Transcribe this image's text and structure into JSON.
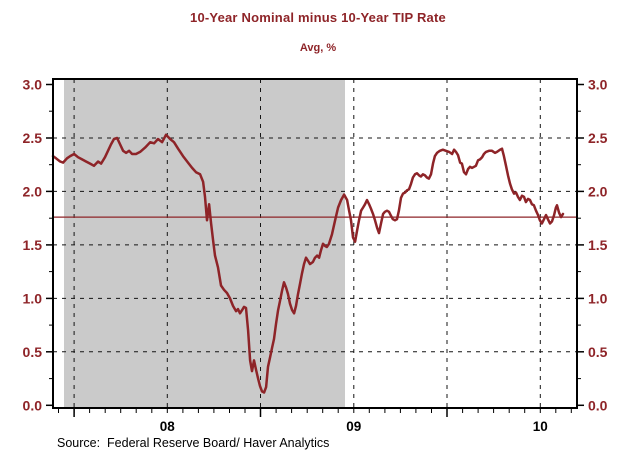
{
  "title": "10-Year Nominal minus 10-Year TIP Rate",
  "subtitle": "Avg, %",
  "source": "Source:  Federal Reserve Board/ Haver Analytics",
  "colors": {
    "accent_red": "#8e2428",
    "band_gray": "#cacaca",
    "grid_black": "#151515",
    "frame_black": "#000000",
    "text_black": "#000000",
    "background": "#ffffff"
  },
  "chart_data": {
    "type": "line",
    "title": "10-Year Nominal minus 10-Year TIP Rate",
    "subtitle": "Avg, %",
    "xlabel": "",
    "ylabel": "Avg, %",
    "grid": "dashed-both-axes",
    "legend_position": "none",
    "x_axis": {
      "unit": "decimal-year",
      "range": [
        2007.887,
        2010.697
      ],
      "labels": [
        {
          "text": "08",
          "year": 2008.5
        },
        {
          "text": "09",
          "year": 2009.5
        },
        {
          "text": "10",
          "year": 2010.5
        }
      ],
      "gridlines": [
        2008.0,
        2008.5,
        2009.0,
        2009.5,
        2010.0,
        2010.5
      ],
      "minor_tick_interval_years": 0.08333,
      "minor_tick_start": 2007.9167,
      "minor_tick_end": 2010.6667,
      "year_start_ticks": [
        2008.0,
        2009.0,
        2010.0
      ]
    },
    "y_axis": {
      "range": [
        0.0,
        3.0
      ],
      "major_ticks": [
        0.0,
        0.5,
        1.0,
        1.5,
        2.0,
        2.5,
        3.0
      ],
      "major_tick_labels": [
        "0.0",
        "0.5",
        "1.0",
        "1.5",
        "2.0",
        "2.5",
        "3.0"
      ],
      "minor_ticks": [
        0.25,
        0.75,
        1.25,
        1.75,
        2.25,
        2.75
      ],
      "gridlines": [
        0.5,
        1.0,
        1.5,
        2.0,
        2.5
      ],
      "labels_on_both_sides": true
    },
    "reference_line_value": 1.76,
    "recession_band": {
      "start": 2007.946,
      "end": 2009.453
    },
    "series": [
      {
        "name": "10-Year Nominal minus 10-Year TIP Rate",
        "points": [
          [
            2007.887,
            2.33
          ],
          [
            2007.903,
            2.31
          ],
          [
            2007.925,
            2.28
          ],
          [
            2007.941,
            2.27
          ],
          [
            2007.962,
            2.31
          ],
          [
            2007.979,
            2.33
          ],
          [
            2008.0,
            2.35
          ],
          [
            2008.021,
            2.32
          ],
          [
            2008.043,
            2.3
          ],
          [
            2008.064,
            2.28
          ],
          [
            2008.086,
            2.26
          ],
          [
            2008.107,
            2.24
          ],
          [
            2008.129,
            2.28
          ],
          [
            2008.145,
            2.26
          ],
          [
            2008.166,
            2.32
          ],
          [
            2008.182,
            2.38
          ],
          [
            2008.198,
            2.44
          ],
          [
            2008.214,
            2.49
          ],
          [
            2008.231,
            2.5
          ],
          [
            2008.247,
            2.44
          ],
          [
            2008.263,
            2.38
          ],
          [
            2008.279,
            2.36
          ],
          [
            2008.295,
            2.38
          ],
          [
            2008.311,
            2.35
          ],
          [
            2008.332,
            2.35
          ],
          [
            2008.354,
            2.37
          ],
          [
            2008.381,
            2.41
          ],
          [
            2008.408,
            2.46
          ],
          [
            2008.429,
            2.45
          ],
          [
            2008.45,
            2.49
          ],
          [
            2008.472,
            2.46
          ],
          [
            2008.493,
            2.53
          ],
          [
            2008.515,
            2.49
          ],
          [
            2008.536,
            2.46
          ],
          [
            2008.558,
            2.4
          ],
          [
            2008.584,
            2.33
          ],
          [
            2008.611,
            2.27
          ],
          [
            2008.633,
            2.22
          ],
          [
            2008.654,
            2.18
          ],
          [
            2008.676,
            2.16
          ],
          [
            2008.692,
            2.09
          ],
          [
            2008.702,
            1.95
          ],
          [
            2008.713,
            1.73
          ],
          [
            2008.724,
            1.88
          ],
          [
            2008.735,
            1.7
          ],
          [
            2008.745,
            1.55
          ],
          [
            2008.756,
            1.4
          ],
          [
            2008.772,
            1.29
          ],
          [
            2008.788,
            1.12
          ],
          [
            2008.804,
            1.08
          ],
          [
            2008.82,
            1.05
          ],
          [
            2008.836,
            1.0
          ],
          [
            2008.852,
            0.93
          ],
          [
            2008.869,
            0.88
          ],
          [
            2008.879,
            0.9
          ],
          [
            2008.89,
            0.86
          ],
          [
            2008.901,
            0.89
          ],
          [
            2008.911,
            0.92
          ],
          [
            2008.922,
            0.91
          ],
          [
            2008.933,
            0.7
          ],
          [
            2008.944,
            0.42
          ],
          [
            2008.954,
            0.32
          ],
          [
            2008.965,
            0.42
          ],
          [
            2008.976,
            0.33
          ],
          [
            2008.987,
            0.25
          ],
          [
            2008.997,
            0.18
          ],
          [
            2009.008,
            0.13
          ],
          [
            2009.019,
            0.12
          ],
          [
            2009.03,
            0.17
          ],
          [
            2009.04,
            0.36
          ],
          [
            2009.051,
            0.45
          ],
          [
            2009.062,
            0.54
          ],
          [
            2009.072,
            0.62
          ],
          [
            2009.083,
            0.76
          ],
          [
            2009.094,
            0.89
          ],
          [
            2009.105,
            0.98
          ],
          [
            2009.115,
            1.07
          ],
          [
            2009.126,
            1.15
          ],
          [
            2009.137,
            1.1
          ],
          [
            2009.147,
            1.04
          ],
          [
            2009.158,
            0.95
          ],
          [
            2009.169,
            0.89
          ],
          [
            2009.18,
            0.86
          ],
          [
            2009.19,
            0.93
          ],
          [
            2009.201,
            1.04
          ],
          [
            2009.212,
            1.14
          ],
          [
            2009.222,
            1.23
          ],
          [
            2009.233,
            1.32
          ],
          [
            2009.244,
            1.38
          ],
          [
            2009.255,
            1.35
          ],
          [
            2009.265,
            1.32
          ],
          [
            2009.281,
            1.34
          ],
          [
            2009.292,
            1.38
          ],
          [
            2009.303,
            1.4
          ],
          [
            2009.314,
            1.38
          ],
          [
            2009.324,
            1.45
          ],
          [
            2009.335,
            1.51
          ],
          [
            2009.346,
            1.49
          ],
          [
            2009.356,
            1.48
          ],
          [
            2009.367,
            1.51
          ],
          [
            2009.383,
            1.6
          ],
          [
            2009.4,
            1.73
          ],
          [
            2009.416,
            1.85
          ],
          [
            2009.432,
            1.92
          ],
          [
            2009.448,
            1.97
          ],
          [
            2009.464,
            1.92
          ],
          [
            2009.475,
            1.82
          ],
          [
            2009.485,
            1.73
          ],
          [
            2009.496,
            1.57
          ],
          [
            2009.507,
            1.53
          ],
          [
            2009.517,
            1.63
          ],
          [
            2009.528,
            1.73
          ],
          [
            2009.539,
            1.82
          ],
          [
            2009.55,
            1.85
          ],
          [
            2009.56,
            1.88
          ],
          [
            2009.571,
            1.92
          ],
          [
            2009.582,
            1.88
          ],
          [
            2009.592,
            1.84
          ],
          [
            2009.603,
            1.79
          ],
          [
            2009.614,
            1.73
          ],
          [
            2009.625,
            1.66
          ],
          [
            2009.635,
            1.61
          ],
          [
            2009.646,
            1.7
          ],
          [
            2009.657,
            1.79
          ],
          [
            2009.667,
            1.81
          ],
          [
            2009.678,
            1.82
          ],
          [
            2009.689,
            1.81
          ],
          [
            2009.7,
            1.77
          ],
          [
            2009.71,
            1.74
          ],
          [
            2009.721,
            1.73
          ],
          [
            2009.732,
            1.74
          ],
          [
            2009.742,
            1.82
          ],
          [
            2009.753,
            1.94
          ],
          [
            2009.764,
            1.98
          ],
          [
            2009.775,
            1.99
          ],
          [
            2009.785,
            2.01
          ],
          [
            2009.796,
            2.02
          ],
          [
            2009.807,
            2.07
          ],
          [
            2009.817,
            2.13
          ],
          [
            2009.828,
            2.16
          ],
          [
            2009.839,
            2.17
          ],
          [
            2009.85,
            2.15
          ],
          [
            2009.86,
            2.14
          ],
          [
            2009.871,
            2.16
          ],
          [
            2009.882,
            2.15
          ],
          [
            2009.892,
            2.13
          ],
          [
            2009.903,
            2.12
          ],
          [
            2009.914,
            2.16
          ],
          [
            2009.925,
            2.26
          ],
          [
            2009.935,
            2.33
          ],
          [
            2009.946,
            2.36
          ],
          [
            2009.962,
            2.38
          ],
          [
            2009.978,
            2.39
          ],
          [
            2009.994,
            2.38
          ],
          [
            2010.011,
            2.37
          ],
          [
            2010.027,
            2.35
          ],
          [
            2010.038,
            2.39
          ],
          [
            2010.048,
            2.37
          ],
          [
            2010.059,
            2.34
          ],
          [
            2010.07,
            2.27
          ],
          [
            2010.08,
            2.26
          ],
          [
            2010.091,
            2.18
          ],
          [
            2010.102,
            2.16
          ],
          [
            2010.113,
            2.21
          ],
          [
            2010.123,
            2.23
          ],
          [
            2010.134,
            2.22
          ],
          [
            2010.145,
            2.23
          ],
          [
            2010.155,
            2.24
          ],
          [
            2010.166,
            2.29
          ],
          [
            2010.177,
            2.3
          ],
          [
            2010.188,
            2.32
          ],
          [
            2010.198,
            2.35
          ],
          [
            2010.209,
            2.37
          ],
          [
            2010.225,
            2.38
          ],
          [
            2010.241,
            2.38
          ],
          [
            2010.257,
            2.36
          ],
          [
            2010.268,
            2.37
          ],
          [
            2010.284,
            2.39
          ],
          [
            2010.295,
            2.4
          ],
          [
            2010.305,
            2.33
          ],
          [
            2010.316,
            2.24
          ],
          [
            2010.327,
            2.15
          ],
          [
            2010.338,
            2.07
          ],
          [
            2010.348,
            2.02
          ],
          [
            2010.359,
            1.98
          ],
          [
            2010.37,
            1.99
          ],
          [
            2010.38,
            1.95
          ],
          [
            2010.391,
            1.92
          ],
          [
            2010.402,
            1.96
          ],
          [
            2010.413,
            1.95
          ],
          [
            2010.423,
            1.9
          ],
          [
            2010.434,
            1.93
          ],
          [
            2010.445,
            1.92
          ],
          [
            2010.455,
            1.88
          ],
          [
            2010.466,
            1.87
          ],
          [
            2010.477,
            1.82
          ],
          [
            2010.488,
            1.78
          ],
          [
            2010.498,
            1.73
          ],
          [
            2010.509,
            1.7
          ],
          [
            2010.52,
            1.74
          ],
          [
            2010.531,
            1.78
          ],
          [
            2010.541,
            1.74
          ],
          [
            2010.552,
            1.7
          ],
          [
            2010.563,
            1.72
          ],
          [
            2010.574,
            1.78
          ],
          [
            2010.584,
            1.85
          ],
          [
            2010.59,
            1.87
          ],
          [
            2010.601,
            1.8
          ],
          [
            2010.612,
            1.76
          ],
          [
            2010.622,
            1.79
          ]
        ]
      }
    ]
  }
}
